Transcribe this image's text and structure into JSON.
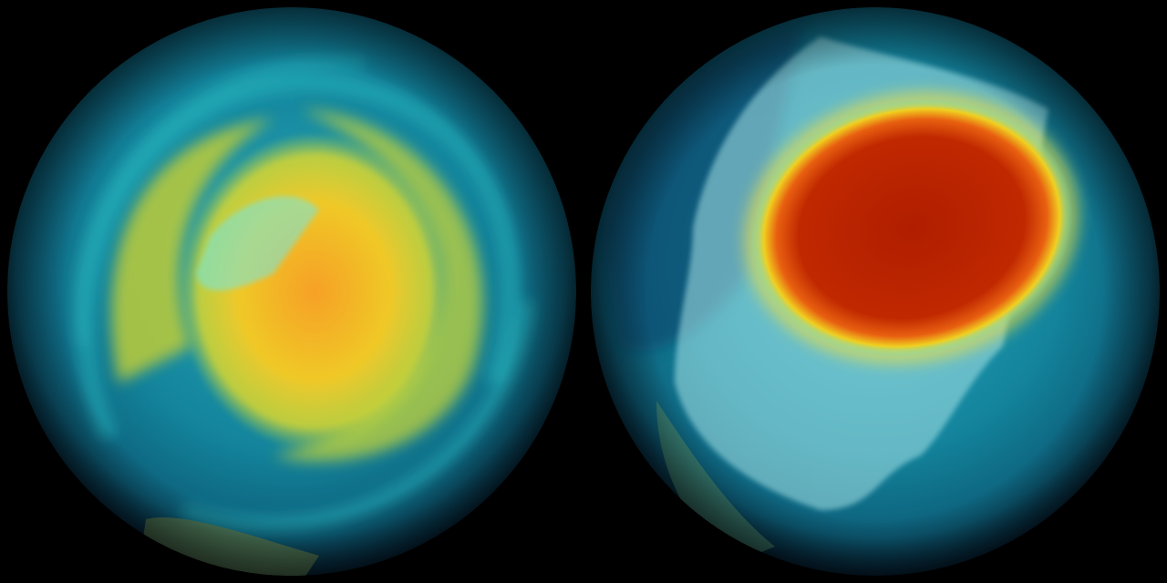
{
  "colors": {
    "background": "#000000",
    "ocean_base": "#0f6f8a",
    "ocean_dark": "#0a3850",
    "teal_swirl": "#1fb5c0",
    "ozone_mid": "#e8d820",
    "ozone_high": "#f0a020",
    "ozone_core": "#b82000",
    "land_overlay": "#9fe0e0"
  },
  "globes": [
    {
      "id": "left",
      "feature": "yellow-orange-anomaly"
    },
    {
      "id": "right",
      "feature": "red-anomaly"
    }
  ]
}
